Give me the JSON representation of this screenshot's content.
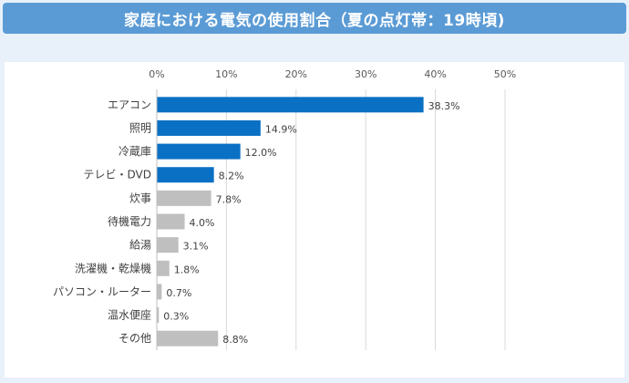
{
  "title": "家庭における電気の使用割合（夏の点灯帯：19時頃)",
  "colors": {
    "highlight": "#0a70c4",
    "other": "#bfbfbf",
    "grid": "#d9d9d9",
    "title_bg": "#5b9bd5",
    "panel_bg": "#e8f1fa"
  },
  "chart_data": {
    "type": "bar",
    "orientation": "horizontal",
    "xlim": [
      0,
      50
    ],
    "xticks": [
      "0%",
      "10%",
      "20%",
      "30%",
      "40%",
      "50%"
    ],
    "xtick_values": [
      0,
      10,
      20,
      30,
      40,
      50
    ],
    "grid": true,
    "categories": [
      "エアコン",
      "照明",
      "冷蔵庫",
      "テレビ・DVD",
      "炊事",
      "待機電力",
      "給湯",
      "洗濯機・乾燥機",
      "パソコン・ルーター",
      "温水便座",
      "その他"
    ],
    "values": [
      38.3,
      14.9,
      12.0,
      8.2,
      7.8,
      4.0,
      3.1,
      1.8,
      0.7,
      0.3,
      8.8
    ],
    "value_labels": [
      "38.3%",
      "14.9%",
      "12.0%",
      "8.2%",
      "7.8%",
      "4.0%",
      "3.1%",
      "1.8%",
      "0.7%",
      "0.3%",
      "8.8%"
    ],
    "highlight_count": 4
  }
}
